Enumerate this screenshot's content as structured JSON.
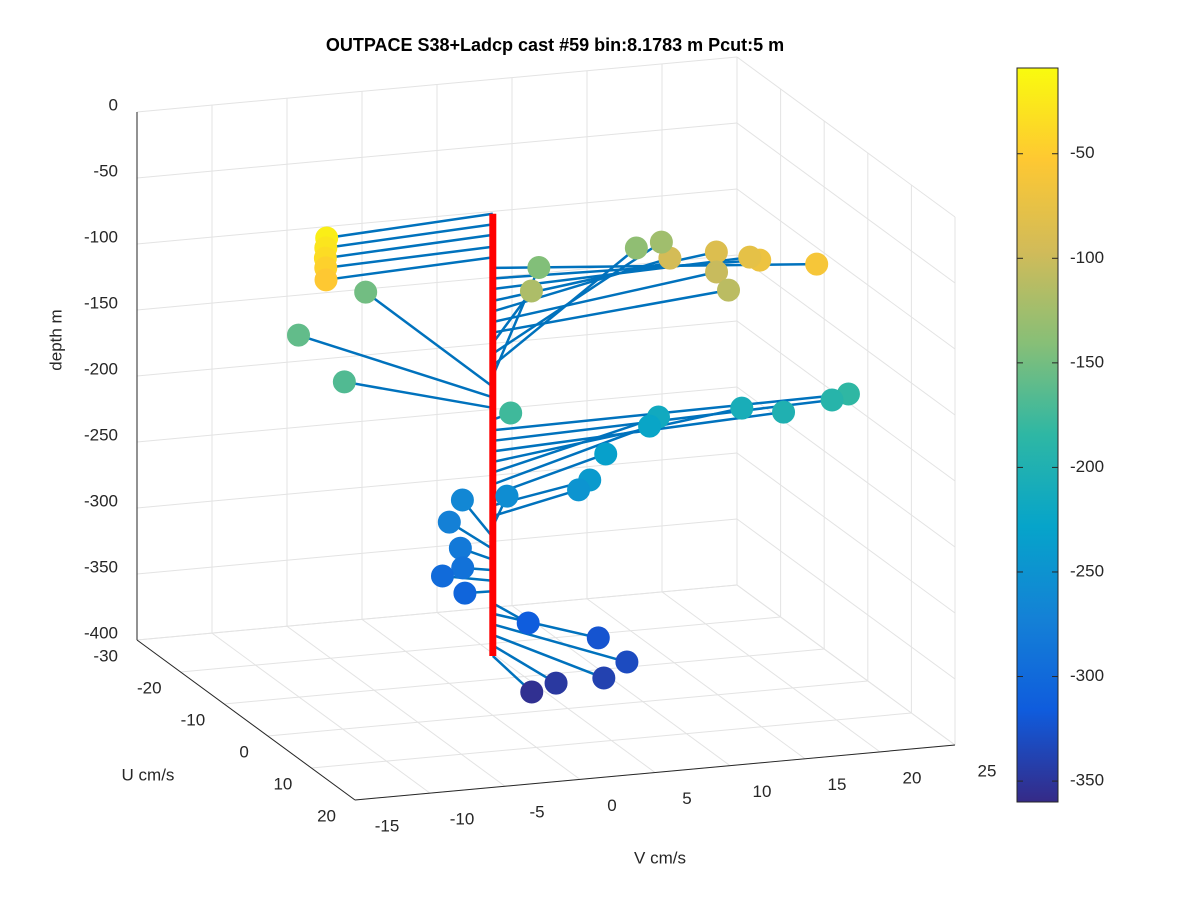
{
  "chart_data": {
    "type": "scatter3",
    "title": "OUTPACE S38+Ladcp cast #59 bin:8.1783 m  Pcut:5 m",
    "xlabel": "V cm/s",
    "ylabel": "U cm/s",
    "zlabel": "depth m",
    "xlim": [
      -15,
      25
    ],
    "xticks": [
      -15,
      -10,
      -5,
      0,
      5,
      10,
      15,
      20,
      25
    ],
    "ylim": [
      -30,
      20
    ],
    "yticks": [
      -30,
      -20,
      -10,
      0,
      10,
      20
    ],
    "zlim": [
      -400,
      0
    ],
    "zticks": [
      -400,
      -350,
      -300,
      -250,
      -200,
      -150,
      -100,
      -50,
      0
    ],
    "clim": [
      -360,
      -9
    ],
    "cticks": [
      -350,
      -300,
      -250,
      -200,
      -150,
      -100,
      -50
    ],
    "colormap": [
      "#352a87",
      "#0f5cdd",
      "#1481d6",
      "#06a4ca",
      "#2eb7a4",
      "#87bf77",
      "#d1bb59",
      "#fec832",
      "#f9fb0e"
    ],
    "line_color": "#0072bd",
    "profile_color": "#ff0000",
    "grid": true,
    "u": [
      2.5,
      2.3,
      2.2,
      1.6,
      2.0,
      7.2,
      1.7,
      -2.3,
      -7.9,
      -10.3,
      -8.2,
      -5.8,
      -13.5,
      -26.7,
      -29,
      -29,
      -29.5,
      -22.2,
      -11,
      -1.4,
      -1.0,
      -2.7,
      -3.5,
      -8.6,
      -11.2,
      -12.2,
      -8.5,
      -4.6,
      -5.1,
      -8.1,
      -11.1,
      -8.6,
      -4.0,
      -1.4,
      -2.6,
      -0.2,
      6.4,
      9.4,
      13.9,
      14.8,
      12.1,
      11.0
    ],
    "v": [
      -11.8,
      -11.8,
      -11.8,
      -11.6,
      -11.7,
      19.5,
      17.3,
      17.8,
      17.2,
      14.8,
      17.3,
      17.4,
      6.5,
      19.0,
      18.0,
      11.5,
      0.1,
      -6.5,
      -6.7,
      1.6,
      24.0,
      23.4,
      20.4,
      19.1,
      14.3,
      14.0,
      10.0,
      7.8,
      7.2,
      3.3,
      1.2,
      -0.4,
      -1.0,
      -1.6,
      -2.6,
      -1.8,
      0.5,
      4.3,
      4.9,
      3.1,
      0.7,
      -0.6
    ],
    "depth": [
      -20,
      -28,
      -36,
      -45,
      -53,
      -61,
      -69,
      -77,
      -86,
      -94,
      -102,
      -110,
      -118,
      -126,
      -135,
      -143,
      -151,
      -159,
      -167,
      -176,
      -184,
      -192,
      -200,
      -208,
      -216,
      -225,
      -233,
      -241,
      -249,
      -257,
      -265,
      -274,
      -282,
      -290,
      -298,
      -306,
      -315,
      -323,
      -331,
      -339,
      -347,
      -355
    ]
  }
}
